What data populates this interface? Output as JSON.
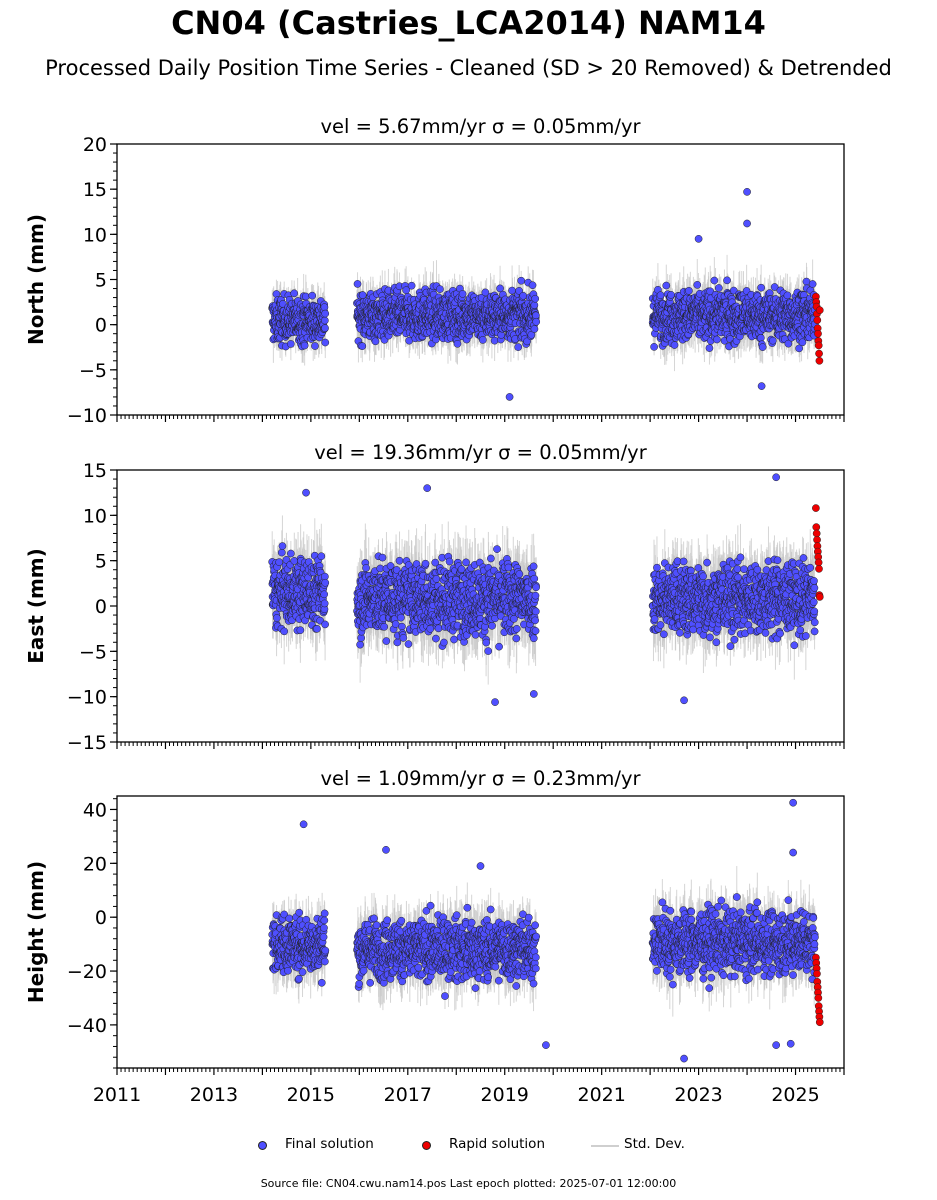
{
  "title": "CN04 (Castries_LCA2014) NAM14",
  "subtitle": "Processed Daily Position Time Series - Cleaned (SD > 20 Removed) & Detrended",
  "legend": {
    "final": "Final solution",
    "rapid": "Rapid solution",
    "std": "Std. Dev."
  },
  "footer": "Source file: CN04.cwu.nam14.pos  Last epoch plotted: 2025-07-01 12:00:00",
  "colors": {
    "final": "#4f4fff",
    "rapid": "#ee0000",
    "std": "#c8c8c8",
    "edge": "#222222"
  },
  "chart_data": [
    {
      "type": "scatter",
      "id": "north",
      "title": "vel = 5.67mm/yr   σ = 0.05mm/yr",
      "ylabel": "North (mm)",
      "xlim": [
        2011,
        2026
      ],
      "ylim": [
        -10,
        20
      ],
      "yticks": [
        "20",
        "15",
        "10",
        "5",
        "0",
        "−5",
        "−10"
      ],
      "xticks": [],
      "segments": [
        {
          "start": 2014.2,
          "end": 2015.3,
          "mean": 0.5,
          "spread": 2.2
        },
        {
          "start": 2015.95,
          "end": 2019.65,
          "mean": 1.0,
          "spread": 2.3
        },
        {
          "start": 2022.05,
          "end": 2025.4,
          "mean": 1.0,
          "spread": 2.4
        }
      ],
      "outliers": [
        [
          2024.0,
          14.7
        ],
        [
          2024.0,
          11.2
        ],
        [
          2019.1,
          -8.0
        ],
        [
          2023.0,
          9.5
        ],
        [
          2024.3,
          -6.8
        ]
      ],
      "rapid": {
        "start": 2025.42,
        "end": 2025.5,
        "values": [
          3.1,
          2.5,
          2.0,
          1.2,
          0.5,
          -0.4,
          -1.0,
          -1.8,
          -2.3,
          -3.2,
          -4.0,
          1.6
        ]
      }
    },
    {
      "type": "scatter",
      "id": "east",
      "title": "vel = 19.36mm/yr   σ = 0.05mm/yr",
      "ylabel": "East (mm)",
      "xlim": [
        2011,
        2026
      ],
      "ylim": [
        -15,
        15
      ],
      "yticks": [
        "15",
        "10",
        "5",
        "0",
        "−5",
        "−10",
        "−15"
      ],
      "xticks": [],
      "segments": [
        {
          "start": 2014.2,
          "end": 2015.3,
          "mean": 1.5,
          "spread": 3.3
        },
        {
          "start": 2015.95,
          "end": 2019.65,
          "mean": 0.8,
          "spread": 3.5
        },
        {
          "start": 2022.05,
          "end": 2025.4,
          "mean": 0.8,
          "spread": 3.4
        }
      ],
      "outliers": [
        [
          2014.9,
          12.5
        ],
        [
          2017.4,
          13.0
        ],
        [
          2024.6,
          14.2
        ],
        [
          2018.8,
          -10.6
        ],
        [
          2022.7,
          -10.4
        ],
        [
          2019.6,
          -9.7
        ]
      ],
      "rapid": {
        "start": 2025.42,
        "end": 2025.5,
        "values": [
          10.8,
          8.7,
          8.0,
          7.3,
          6.6,
          6.0,
          5.4,
          4.8,
          4.1,
          1.2,
          1.0
        ]
      }
    },
    {
      "type": "scatter",
      "id": "height",
      "title": "vel = 1.09mm/yr   σ = 0.23mm/yr",
      "ylabel": "Height (mm)",
      "xlim": [
        2011,
        2026
      ],
      "ylim": [
        -56,
        45
      ],
      "yticks": [
        "40",
        "20",
        "0",
        "−20",
        "−40"
      ],
      "ytick_values": [
        40,
        20,
        0,
        -20,
        -40
      ],
      "xticks": [
        "2011",
        "2013",
        "2015",
        "2017",
        "2019",
        "2021",
        "2023",
        "2025"
      ],
      "segments": [
        {
          "start": 2014.2,
          "end": 2015.3,
          "mean": -10,
          "spread": 9
        },
        {
          "start": 2015.95,
          "end": 2019.65,
          "mean": -12,
          "spread": 9.5
        },
        {
          "start": 2022.05,
          "end": 2025.4,
          "mean": -9,
          "spread": 10
        }
      ],
      "outliers": [
        [
          2014.85,
          34.5
        ],
        [
          2016.55,
          25
        ],
        [
          2018.5,
          19
        ],
        [
          2024.95,
          42.5
        ],
        [
          2024.95,
          24
        ],
        [
          2019.85,
          -47.5
        ],
        [
          2022.7,
          -52.5
        ],
        [
          2024.6,
          -47.5
        ],
        [
          2024.9,
          -47
        ]
      ],
      "rapid": {
        "start": 2025.42,
        "end": 2025.5,
        "values": [
          -15,
          -17,
          -19,
          -21,
          -24,
          -26,
          -28,
          -30,
          -33,
          -35,
          -37,
          -39
        ]
      }
    }
  ]
}
